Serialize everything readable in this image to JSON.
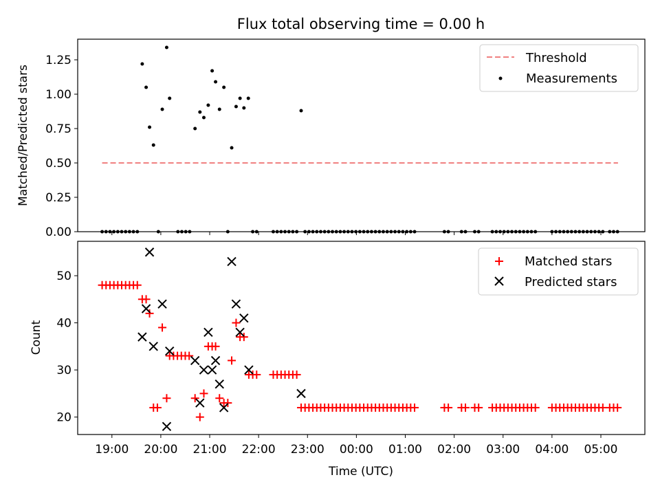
{
  "title": "Flux total observing time = 0.00 h",
  "x_axis": {
    "label": "Time (UTC)",
    "range_hours": [
      18.3,
      29.9
    ],
    "ticks": [
      {
        "value": 19,
        "label": "19:00"
      },
      {
        "value": 20,
        "label": "20:00"
      },
      {
        "value": 21,
        "label": "21:00"
      },
      {
        "value": 22,
        "label": "22:00"
      },
      {
        "value": 23,
        "label": "23:00"
      },
      {
        "value": 24,
        "label": "00:00"
      },
      {
        "value": 25,
        "label": "01:00"
      },
      {
        "value": 26,
        "label": "02:00"
      },
      {
        "value": 27,
        "label": "03:00"
      },
      {
        "value": 28,
        "label": "04:00"
      },
      {
        "value": 29,
        "label": "05:00"
      }
    ]
  },
  "colors": {
    "threshold": "#f08080",
    "measurement": "#000000",
    "matched": "#ff0000",
    "predicted": "#000000"
  },
  "chart_data": [
    {
      "type": "scatter",
      "panel": "top",
      "ylabel": "Matched/Predicted stars",
      "ylim": [
        0,
        1.4
      ],
      "yticks": [
        {
          "value": 0,
          "label": "0.00"
        },
        {
          "value": 0.25,
          "label": "0.25"
        },
        {
          "value": 0.5,
          "label": "0.50"
        },
        {
          "value": 0.75,
          "label": "0.75"
        },
        {
          "value": 1.0,
          "label": "1.00"
        },
        {
          "value": 1.25,
          "label": "1.25"
        }
      ],
      "legend": {
        "position": "top-right",
        "threshold_label": "Threshold",
        "measurements_label": "Measurements"
      },
      "threshold": {
        "value": 0.5,
        "x_start": 18.8,
        "x_end": 29.35
      },
      "measurements": [
        [
          19.62,
          1.22
        ],
        [
          19.7,
          1.05
        ],
        [
          19.77,
          0.76
        ],
        [
          19.85,
          0.63
        ],
        [
          20.03,
          0.89
        ],
        [
          20.12,
          1.34
        ],
        [
          20.18,
          0.97
        ],
        [
          20.7,
          0.75
        ],
        [
          20.8,
          0.87
        ],
        [
          20.88,
          0.83
        ],
        [
          20.97,
          0.92
        ],
        [
          21.05,
          1.17
        ],
        [
          21.12,
          1.09
        ],
        [
          21.2,
          0.89
        ],
        [
          21.29,
          1.05
        ],
        [
          21.45,
          0.61
        ],
        [
          21.54,
          0.91
        ],
        [
          21.62,
          0.97
        ],
        [
          21.7,
          0.9
        ],
        [
          21.79,
          0.97
        ],
        [
          22.87,
          0.88
        ],
        [
          18.8,
          0
        ],
        [
          18.88,
          0
        ],
        [
          18.96,
          0
        ],
        [
          19.04,
          0
        ],
        [
          19.12,
          0
        ],
        [
          19.2,
          0
        ],
        [
          19.28,
          0
        ],
        [
          19.36,
          0
        ],
        [
          19.44,
          0
        ],
        [
          19.52,
          0
        ],
        [
          19.95,
          0
        ],
        [
          20.35,
          0
        ],
        [
          20.43,
          0
        ],
        [
          20.51,
          0
        ],
        [
          20.59,
          0
        ],
        [
          21.37,
          0
        ],
        [
          21.88,
          0
        ],
        [
          21.96,
          0
        ],
        [
          22.3,
          0
        ],
        [
          22.38,
          0
        ],
        [
          22.46,
          0
        ],
        [
          22.54,
          0
        ],
        [
          22.62,
          0
        ],
        [
          22.7,
          0
        ],
        [
          22.78,
          0
        ],
        [
          22.95,
          0
        ],
        [
          23.03,
          0
        ],
        [
          23.11,
          0
        ],
        [
          23.19,
          0
        ],
        [
          23.27,
          0
        ],
        [
          23.35,
          0
        ],
        [
          23.43,
          0
        ],
        [
          23.51,
          0
        ],
        [
          23.59,
          0
        ],
        [
          23.67,
          0
        ],
        [
          23.75,
          0
        ],
        [
          23.83,
          0
        ],
        [
          23.91,
          0
        ],
        [
          23.99,
          0
        ],
        [
          24.07,
          0
        ],
        [
          24.15,
          0
        ],
        [
          24.23,
          0
        ],
        [
          24.31,
          0
        ],
        [
          24.39,
          0
        ],
        [
          24.47,
          0
        ],
        [
          24.55,
          0
        ],
        [
          24.63,
          0
        ],
        [
          24.71,
          0
        ],
        [
          24.79,
          0
        ],
        [
          24.87,
          0
        ],
        [
          24.95,
          0
        ],
        [
          25.03,
          0
        ],
        [
          25.11,
          0
        ],
        [
          25.19,
          0
        ],
        [
          25.8,
          0
        ],
        [
          25.88,
          0
        ],
        [
          26.15,
          0
        ],
        [
          26.23,
          0
        ],
        [
          26.42,
          0
        ],
        [
          26.5,
          0
        ],
        [
          26.78,
          0
        ],
        [
          26.86,
          0
        ],
        [
          26.94,
          0
        ],
        [
          27.02,
          0
        ],
        [
          27.1,
          0
        ],
        [
          27.18,
          0
        ],
        [
          27.26,
          0
        ],
        [
          27.34,
          0
        ],
        [
          27.42,
          0
        ],
        [
          27.5,
          0
        ],
        [
          27.58,
          0
        ],
        [
          27.66,
          0
        ],
        [
          28.0,
          0
        ],
        [
          28.08,
          0
        ],
        [
          28.16,
          0
        ],
        [
          28.24,
          0
        ],
        [
          28.32,
          0
        ],
        [
          28.4,
          0
        ],
        [
          28.48,
          0
        ],
        [
          28.56,
          0
        ],
        [
          28.64,
          0
        ],
        [
          28.72,
          0
        ],
        [
          28.8,
          0
        ],
        [
          28.88,
          0
        ],
        [
          28.96,
          0
        ],
        [
          29.04,
          0
        ],
        [
          29.18,
          0
        ],
        [
          29.26,
          0
        ],
        [
          29.34,
          0
        ]
      ]
    },
    {
      "type": "scatter",
      "panel": "bottom",
      "ylabel": "Count",
      "ylim": [
        16.3,
        57.3
      ],
      "yticks": [
        {
          "value": 20,
          "label": "20"
        },
        {
          "value": 30,
          "label": "30"
        },
        {
          "value": 40,
          "label": "40"
        },
        {
          "value": 50,
          "label": "50"
        }
      ],
      "legend": {
        "position": "top-right",
        "matched_label": "Matched stars",
        "predicted_label": "Predicted stars"
      },
      "matched": [
        [
          18.8,
          48
        ],
        [
          18.88,
          48
        ],
        [
          18.96,
          48
        ],
        [
          19.04,
          48
        ],
        [
          19.12,
          48
        ],
        [
          19.2,
          48
        ],
        [
          19.28,
          48
        ],
        [
          19.36,
          48
        ],
        [
          19.44,
          48
        ],
        [
          19.52,
          48
        ],
        [
          19.62,
          45
        ],
        [
          19.7,
          45
        ],
        [
          19.77,
          42
        ],
        [
          19.85,
          22
        ],
        [
          19.93,
          22
        ],
        [
          20.03,
          39
        ],
        [
          20.12,
          24
        ],
        [
          20.18,
          33
        ],
        [
          20.26,
          33
        ],
        [
          20.34,
          33
        ],
        [
          20.42,
          33
        ],
        [
          20.5,
          33
        ],
        [
          20.58,
          33
        ],
        [
          20.7,
          24
        ],
        [
          20.8,
          20
        ],
        [
          20.88,
          25
        ],
        [
          20.97,
          35
        ],
        [
          21.05,
          35
        ],
        [
          21.12,
          35
        ],
        [
          21.2,
          24
        ],
        [
          21.29,
          23
        ],
        [
          21.37,
          23
        ],
        [
          21.45,
          32
        ],
        [
          21.54,
          40
        ],
        [
          21.62,
          37
        ],
        [
          21.7,
          37
        ],
        [
          21.8,
          29
        ],
        [
          21.88,
          29
        ],
        [
          21.96,
          29
        ],
        [
          22.3,
          29
        ],
        [
          22.38,
          29
        ],
        [
          22.46,
          29
        ],
        [
          22.54,
          29
        ],
        [
          22.62,
          29
        ],
        [
          22.7,
          29
        ],
        [
          22.78,
          29
        ],
        [
          22.87,
          22
        ],
        [
          22.95,
          22
        ],
        [
          23.03,
          22
        ],
        [
          23.11,
          22
        ],
        [
          23.19,
          22
        ],
        [
          23.27,
          22
        ],
        [
          23.35,
          22
        ],
        [
          23.43,
          22
        ],
        [
          23.51,
          22
        ],
        [
          23.59,
          22
        ],
        [
          23.67,
          22
        ],
        [
          23.75,
          22
        ],
        [
          23.83,
          22
        ],
        [
          23.91,
          22
        ],
        [
          23.99,
          22
        ],
        [
          24.07,
          22
        ],
        [
          24.15,
          22
        ],
        [
          24.23,
          22
        ],
        [
          24.31,
          22
        ],
        [
          24.39,
          22
        ],
        [
          24.47,
          22
        ],
        [
          24.55,
          22
        ],
        [
          24.63,
          22
        ],
        [
          24.71,
          22
        ],
        [
          24.79,
          22
        ],
        [
          24.87,
          22
        ],
        [
          24.95,
          22
        ],
        [
          25.03,
          22
        ],
        [
          25.11,
          22
        ],
        [
          25.19,
          22
        ],
        [
          25.8,
          22
        ],
        [
          25.88,
          22
        ],
        [
          26.15,
          22
        ],
        [
          26.23,
          22
        ],
        [
          26.42,
          22
        ],
        [
          26.5,
          22
        ],
        [
          26.78,
          22
        ],
        [
          26.86,
          22
        ],
        [
          26.94,
          22
        ],
        [
          27.02,
          22
        ],
        [
          27.1,
          22
        ],
        [
          27.18,
          22
        ],
        [
          27.26,
          22
        ],
        [
          27.34,
          22
        ],
        [
          27.42,
          22
        ],
        [
          27.5,
          22
        ],
        [
          27.58,
          22
        ],
        [
          27.66,
          22
        ],
        [
          28.0,
          22
        ],
        [
          28.08,
          22
        ],
        [
          28.16,
          22
        ],
        [
          28.24,
          22
        ],
        [
          28.32,
          22
        ],
        [
          28.4,
          22
        ],
        [
          28.48,
          22
        ],
        [
          28.56,
          22
        ],
        [
          28.64,
          22
        ],
        [
          28.72,
          22
        ],
        [
          28.8,
          22
        ],
        [
          28.88,
          22
        ],
        [
          28.96,
          22
        ],
        [
          29.04,
          22
        ],
        [
          29.18,
          22
        ],
        [
          29.26,
          22
        ],
        [
          29.34,
          22
        ]
      ],
      "predicted": [
        [
          19.62,
          37
        ],
        [
          19.7,
          43
        ],
        [
          19.77,
          55
        ],
        [
          19.85,
          35
        ],
        [
          20.03,
          44
        ],
        [
          20.12,
          18
        ],
        [
          20.18,
          34
        ],
        [
          20.7,
          32
        ],
        [
          20.8,
          23
        ],
        [
          20.88,
          30
        ],
        [
          20.97,
          38
        ],
        [
          21.05,
          30
        ],
        [
          21.12,
          32
        ],
        [
          21.2,
          27
        ],
        [
          21.29,
          22
        ],
        [
          21.45,
          53
        ],
        [
          21.54,
          44
        ],
        [
          21.62,
          38
        ],
        [
          21.7,
          41
        ],
        [
          21.8,
          30
        ],
        [
          22.87,
          25
        ]
      ]
    }
  ]
}
